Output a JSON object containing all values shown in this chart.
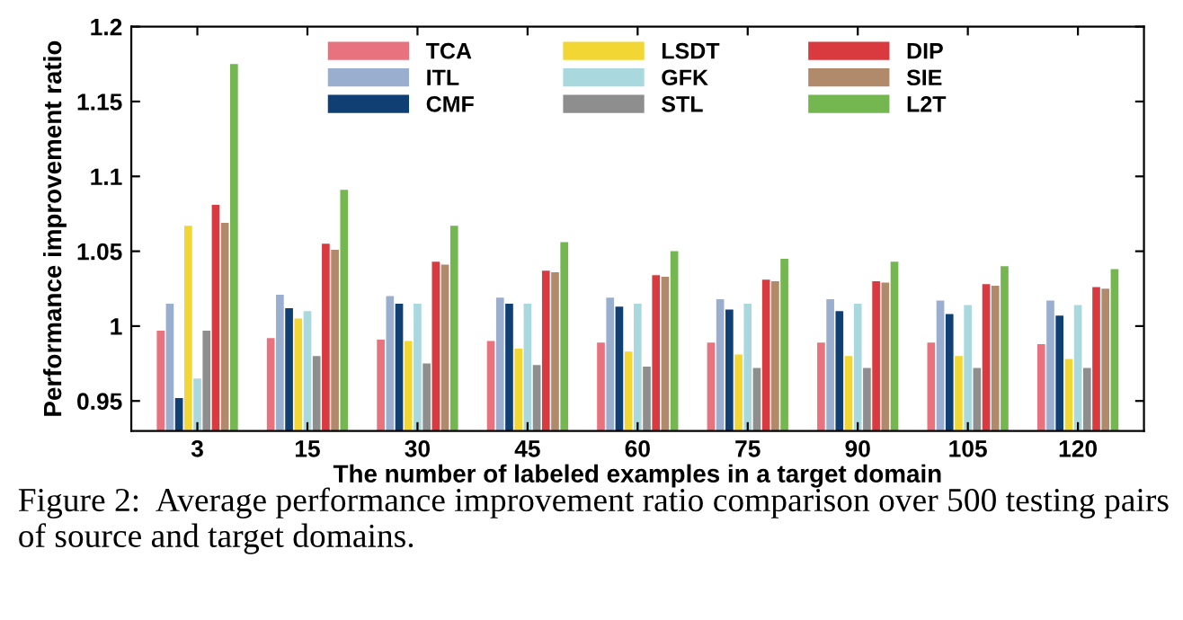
{
  "chart_data": {
    "type": "bar",
    "xlabel": "The number of labeled examples in a target domain",
    "ylabel": "Performance improvement ratio",
    "categories": [
      "3",
      "15",
      "30",
      "45",
      "60",
      "75",
      "90",
      "105",
      "120"
    ],
    "ylim": [
      0.93,
      1.2
    ],
    "yticks": [
      0.95,
      1,
      1.05,
      1.1,
      1.15,
      1.2
    ],
    "legend": "top",
    "grid": false,
    "series": [
      {
        "name": "TCA",
        "color": "#e8737f",
        "values": [
          0.997,
          0.992,
          0.991,
          0.99,
          0.989,
          0.989,
          0.989,
          0.989,
          0.988
        ]
      },
      {
        "name": "ITL",
        "color": "#9aaed0",
        "values": [
          1.015,
          1.021,
          1.02,
          1.019,
          1.019,
          1.018,
          1.018,
          1.017,
          1.017
        ]
      },
      {
        "name": "CMF",
        "color": "#0f3f73",
        "values": [
          0.952,
          1.012,
          1.015,
          1.015,
          1.013,
          1.011,
          1.01,
          1.008,
          1.007
        ]
      },
      {
        "name": "LSDT",
        "color": "#f2d634",
        "values": [
          1.067,
          1.005,
          0.99,
          0.985,
          0.983,
          0.981,
          0.98,
          0.98,
          0.978
        ]
      },
      {
        "name": "GFK",
        "color": "#a9d9de",
        "values": [
          0.965,
          1.01,
          1.015,
          1.015,
          1.015,
          1.015,
          1.015,
          1.014,
          1.014
        ]
      },
      {
        "name": "STL",
        "color": "#8e8e8e",
        "values": [
          0.997,
          0.98,
          0.975,
          0.974,
          0.973,
          0.972,
          0.972,
          0.972,
          0.972
        ]
      },
      {
        "name": "DIP",
        "color": "#d93a3f",
        "values": [
          1.081,
          1.055,
          1.043,
          1.037,
          1.034,
          1.031,
          1.03,
          1.028,
          1.026
        ]
      },
      {
        "name": "SIE",
        "color": "#b08a6a",
        "values": [
          1.069,
          1.051,
          1.041,
          1.036,
          1.033,
          1.03,
          1.029,
          1.027,
          1.025
        ]
      },
      {
        "name": "L2T",
        "color": "#74b650",
        "values": [
          1.175,
          1.091,
          1.067,
          1.056,
          1.05,
          1.045,
          1.043,
          1.04,
          1.038
        ]
      }
    ],
    "annotations": [
      "Figure 2:  Average performance improvement ratio comparison over 500 testing pairs of source and target domains."
    ]
  }
}
